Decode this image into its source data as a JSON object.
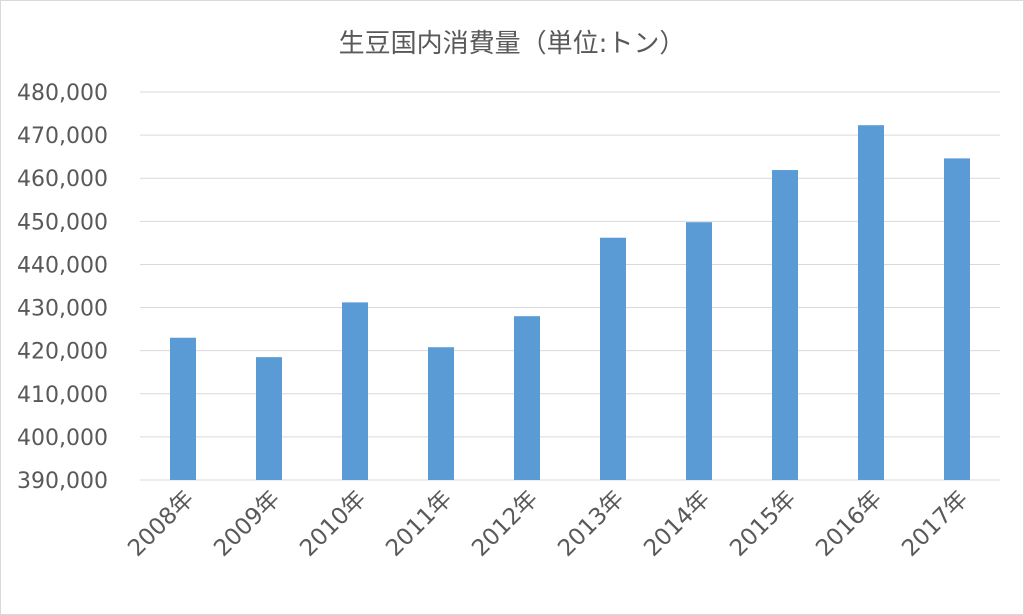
{
  "chart_data": {
    "type": "bar",
    "title": "生豆国内消費量（単位:トン）",
    "xlabel": "",
    "ylabel": "",
    "categories": [
      "2008年",
      "2009年",
      "2010年",
      "2011年",
      "2012年",
      "2013年",
      "2014年",
      "2015年",
      "2016年",
      "2017年"
    ],
    "values": [
      423000,
      418500,
      431200,
      420800,
      428000,
      446200,
      449800,
      461900,
      472300,
      464600
    ],
    "ylim": [
      390000,
      480000
    ],
    "yticks": [
      390000,
      400000,
      410000,
      420000,
      430000,
      440000,
      450000,
      460000,
      470000,
      480000
    ],
    "ytick_labels": [
      "390,000",
      "400,000",
      "410,000",
      "420,000",
      "430,000",
      "440,000",
      "450,000",
      "460,000",
      "470,000",
      "480,000"
    ],
    "grid": true,
    "legend": "none",
    "bar_color": "#5b9bd5",
    "grid_color": "#d9d9d9"
  }
}
